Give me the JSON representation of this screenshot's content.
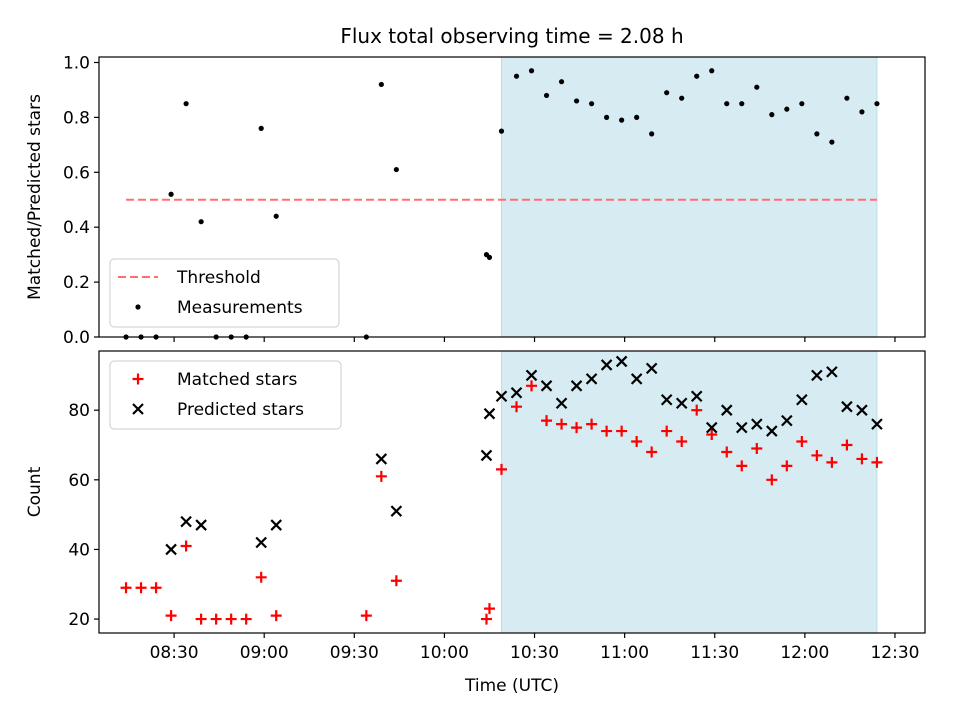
{
  "chart_data": [
    {
      "type": "scatter",
      "title": "Flux total observing time = 2.08 h",
      "xlabel": "",
      "ylabel": "Matched/Predicted stars",
      "ylim": [
        0,
        1.02
      ],
      "yticks": [
        "0.0",
        "0.2",
        "0.4",
        "0.6",
        "0.8",
        "1.0"
      ],
      "xlim_minutes": [
        485,
        760
      ],
      "highlight_span": {
        "from": "10:19",
        "to": "12:24",
        "color": "#add8e6"
      },
      "threshold": {
        "name": "Threshold",
        "value": 0.5,
        "from": "08:14",
        "to": "12:24",
        "color": "#ff6f6f"
      },
      "legend": {
        "location": "lower-left",
        "entries": [
          "Threshold",
          "Measurements"
        ]
      },
      "series": [
        {
          "name": "Measurements",
          "marker": "dot",
          "color": "#000000",
          "points": [
            [
              "08:14",
              0.0
            ],
            [
              "08:19",
              0.0
            ],
            [
              "08:24",
              0.0
            ],
            [
              "08:29",
              0.52
            ],
            [
              "08:34",
              0.85
            ],
            [
              "08:39",
              0.42
            ],
            [
              "08:44",
              0.0
            ],
            [
              "08:49",
              0.0
            ],
            [
              "08:54",
              0.0
            ],
            [
              "08:59",
              0.76
            ],
            [
              "09:04",
              0.44
            ],
            [
              "09:34",
              0.0
            ],
            [
              "09:39",
              0.92
            ],
            [
              "09:44",
              0.61
            ],
            [
              "10:14",
              0.3
            ],
            [
              "10:15",
              0.29
            ],
            [
              "10:19",
              0.75
            ],
            [
              "10:24",
              0.95
            ],
            [
              "10:29",
              0.97
            ],
            [
              "10:34",
              0.88
            ],
            [
              "10:39",
              0.93
            ],
            [
              "10:44",
              0.86
            ],
            [
              "10:49",
              0.85
            ],
            [
              "10:54",
              0.8
            ],
            [
              "10:59",
              0.79
            ],
            [
              "11:04",
              0.8
            ],
            [
              "11:09",
              0.74
            ],
            [
              "11:14",
              0.89
            ],
            [
              "11:19",
              0.87
            ],
            [
              "11:24",
              0.95
            ],
            [
              "11:29",
              0.97
            ],
            [
              "11:34",
              0.85
            ],
            [
              "11:39",
              0.85
            ],
            [
              "11:44",
              0.91
            ],
            [
              "11:49",
              0.81
            ],
            [
              "11:54",
              0.83
            ],
            [
              "11:59",
              0.85
            ],
            [
              "12:04",
              0.74
            ],
            [
              "12:09",
              0.71
            ],
            [
              "12:14",
              0.87
            ],
            [
              "12:19",
              0.82
            ],
            [
              "12:24",
              0.85
            ]
          ]
        }
      ]
    },
    {
      "type": "scatter",
      "title": "",
      "xlabel": "Time (UTC)",
      "ylabel": "Count",
      "ylim": [
        16,
        97
      ],
      "yticks": [
        "20",
        "40",
        "60",
        "80"
      ],
      "xticks": [
        "08:30",
        "09:00",
        "09:30",
        "10:00",
        "10:30",
        "11:00",
        "11:30",
        "12:00",
        "12:30"
      ],
      "xlim_minutes": [
        485,
        760
      ],
      "highlight_span": {
        "from": "10:19",
        "to": "12:24",
        "color": "#add8e6"
      },
      "legend": {
        "location": "top-left",
        "entries": [
          "Matched stars",
          "Predicted stars"
        ]
      },
      "series": [
        {
          "name": "Matched stars",
          "marker": "plus",
          "color": "#ff0000",
          "points": [
            [
              "08:14",
              29
            ],
            [
              "08:19",
              29
            ],
            [
              "08:24",
              29
            ],
            [
              "08:29",
              21
            ],
            [
              "08:34",
              41
            ],
            [
              "08:39",
              20
            ],
            [
              "08:44",
              20
            ],
            [
              "08:49",
              20
            ],
            [
              "08:54",
              20
            ],
            [
              "08:59",
              32
            ],
            [
              "09:04",
              21
            ],
            [
              "09:34",
              21
            ],
            [
              "09:39",
              61
            ],
            [
              "09:44",
              31
            ],
            [
              "10:14",
              20
            ],
            [
              "10:15",
              23
            ],
            [
              "10:19",
              63
            ],
            [
              "10:24",
              81
            ],
            [
              "10:29",
              87
            ],
            [
              "10:34",
              77
            ],
            [
              "10:39",
              76
            ],
            [
              "10:44",
              75
            ],
            [
              "10:49",
              76
            ],
            [
              "10:54",
              74
            ],
            [
              "10:59",
              74
            ],
            [
              "11:04",
              71
            ],
            [
              "11:09",
              68
            ],
            [
              "11:14",
              74
            ],
            [
              "11:19",
              71
            ],
            [
              "11:24",
              80
            ],
            [
              "11:29",
              73
            ],
            [
              "11:34",
              68
            ],
            [
              "11:39",
              64
            ],
            [
              "11:44",
              69
            ],
            [
              "11:49",
              60
            ],
            [
              "11:54",
              64
            ],
            [
              "11:59",
              71
            ],
            [
              "12:04",
              67
            ],
            [
              "12:09",
              65
            ],
            [
              "12:14",
              70
            ],
            [
              "12:19",
              66
            ],
            [
              "12:24",
              65
            ]
          ]
        },
        {
          "name": "Predicted stars",
          "marker": "cross",
          "color": "#000000",
          "points": [
            [
              "08:29",
              40
            ],
            [
              "08:34",
              48
            ],
            [
              "08:39",
              47
            ],
            [
              "08:59",
              42
            ],
            [
              "09:04",
              47
            ],
            [
              "09:39",
              66
            ],
            [
              "09:44",
              51
            ],
            [
              "10:14",
              67
            ],
            [
              "10:15",
              79
            ],
            [
              "10:19",
              84
            ],
            [
              "10:24",
              85
            ],
            [
              "10:29",
              90
            ],
            [
              "10:34",
              87
            ],
            [
              "10:39",
              82
            ],
            [
              "10:44",
              87
            ],
            [
              "10:49",
              89
            ],
            [
              "10:54",
              93
            ],
            [
              "10:59",
              94
            ],
            [
              "11:04",
              89
            ],
            [
              "11:09",
              92
            ],
            [
              "11:14",
              83
            ],
            [
              "11:19",
              82
            ],
            [
              "11:24",
              84
            ],
            [
              "11:29",
              75
            ],
            [
              "11:34",
              80
            ],
            [
              "11:39",
              75
            ],
            [
              "11:44",
              76
            ],
            [
              "11:49",
              74
            ],
            [
              "11:54",
              77
            ],
            [
              "11:59",
              83
            ],
            [
              "12:04",
              90
            ],
            [
              "12:09",
              91
            ],
            [
              "12:14",
              81
            ],
            [
              "12:19",
              80
            ],
            [
              "12:24",
              76
            ]
          ]
        }
      ]
    }
  ]
}
